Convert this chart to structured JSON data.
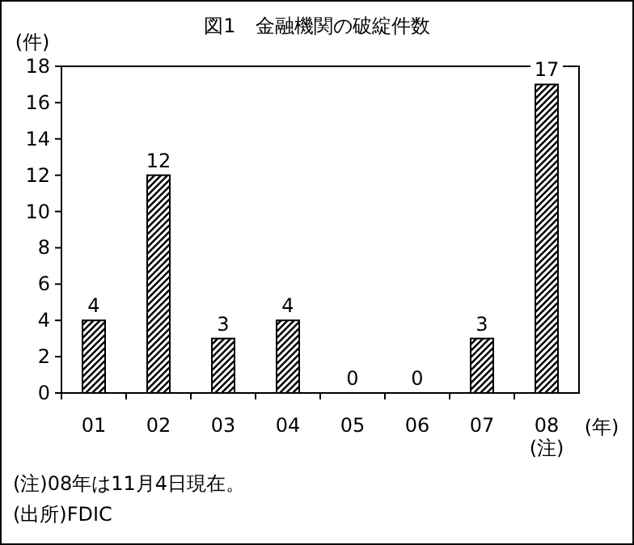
{
  "chart_data": {
    "type": "bar",
    "title": "図1　金融機関の破綻件数",
    "ylabel": "(件)",
    "xlabel": "(年)",
    "categories": [
      "01",
      "02",
      "03",
      "04",
      "05",
      "06",
      "07",
      "08\n(注)"
    ],
    "values": [
      4,
      12,
      3,
      4,
      0,
      0,
      3,
      17
    ],
    "color": "#000000",
    "data_labels": true,
    "ylim": [
      0,
      18
    ],
    "yticks": [
      0,
      2,
      4,
      6,
      8,
      10,
      12,
      14,
      16,
      18
    ],
    "grid": false,
    "annotations": [
      "(注)08年は11月4日現在。",
      "(出所)FDIC"
    ]
  }
}
